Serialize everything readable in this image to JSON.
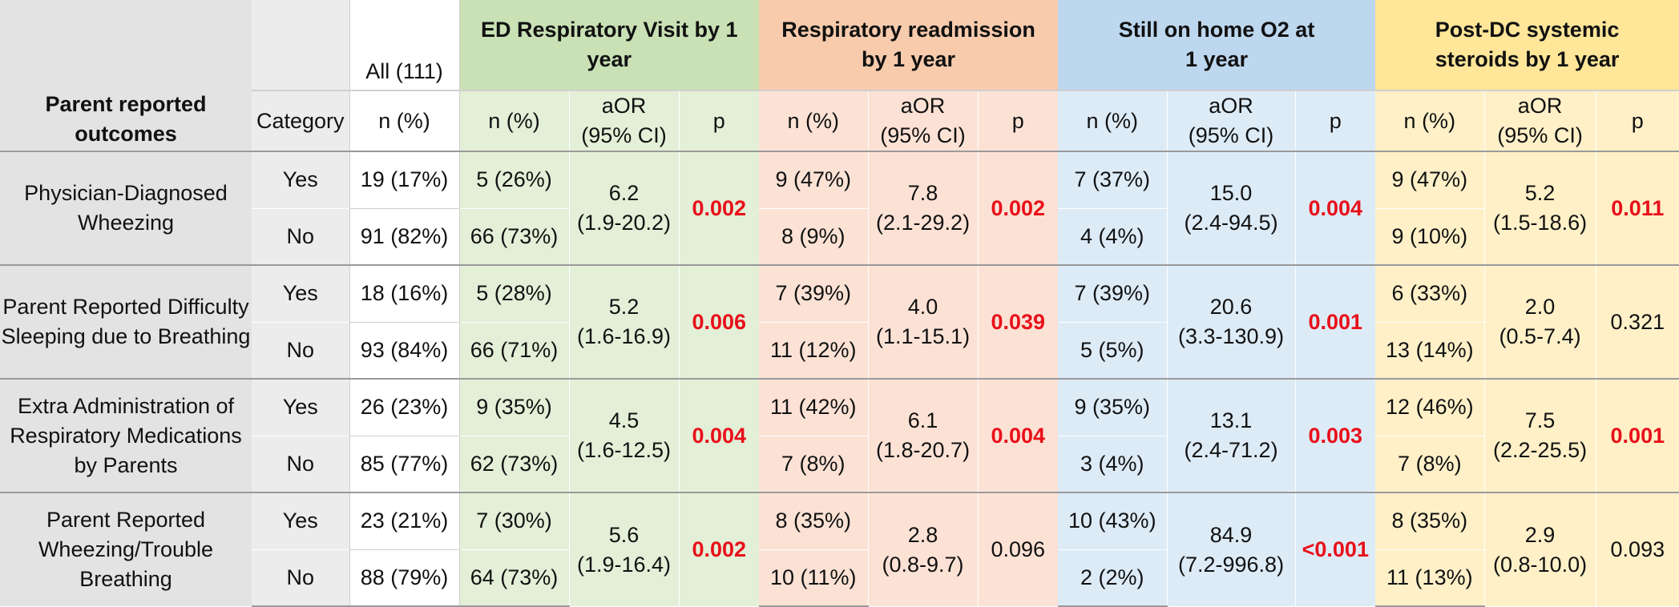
{
  "header": {
    "outcome_label": "Parent reported outcomes",
    "category_label": "Category",
    "all_label": "All (111)",
    "all_sub": "n (%)",
    "groups": [
      {
        "title": "ED Respiratory Visit by 1 year",
        "n_label": "n (%)",
        "aor_label": "aOR (95% CI)",
        "p_label": "p",
        "color": "#c9e1b5",
        "light": "#e3efd7"
      },
      {
        "title": "Respiratory readmission by 1 year",
        "n_label": "n (%)",
        "aor_label": "aOR (95% CI)",
        "p_label": "p",
        "color": "#f8cbad",
        "light": "#fce2d5"
      },
      {
        "title": "Still on home O2 at 1 year",
        "n_label": "n (%)",
        "aor_label": "aOR (95% CI)",
        "p_label": "p",
        "color": "#bdd7ee",
        "light": "#ddebf7"
      },
      {
        "title": "Post-DC systemic steroids by 1 year",
        "n_label": "n (%)",
        "aor_label": "aOR (95% CI)",
        "p_label": "p",
        "color": "#ffe699",
        "light": "#fff0c8"
      }
    ]
  },
  "significant_color": "#e8101a",
  "rows": [
    {
      "outcome": "Physician-Diagnosed Wheezing",
      "yes_label": "Yes",
      "no_label": "No",
      "all_yes": "19 (17%)",
      "all_no": "91 (82%)",
      "groups": [
        {
          "yes": "5 (26%)",
          "no": "66 (73%)",
          "aor": "6.2",
          "ci": "(1.9-20.2)",
          "p": "0.002",
          "sig": true
        },
        {
          "yes": "9 (47%)",
          "no": "8 (9%)",
          "aor": "7.8",
          "ci": "(2.1-29.2)",
          "p": "0.002",
          "sig": true
        },
        {
          "yes": "7 (37%)",
          "no": "4 (4%)",
          "aor": "15.0",
          "ci": "(2.4-94.5)",
          "p": "0.004",
          "sig": true
        },
        {
          "yes": "9 (47%)",
          "no": "9 (10%)",
          "aor": "5.2",
          "ci": "(1.5-18.6)",
          "p": "0.011",
          "sig": true
        }
      ]
    },
    {
      "outcome": "Parent Reported Difficulty Sleeping due to Breathing",
      "yes_label": "Yes",
      "no_label": "No",
      "all_yes": "18 (16%)",
      "all_no": "93 (84%)",
      "groups": [
        {
          "yes": "5 (28%)",
          "no": "66 (71%)",
          "aor": "5.2",
          "ci": "(1.6-16.9)",
          "p": "0.006",
          "sig": true
        },
        {
          "yes": "7 (39%)",
          "no": "11 (12%)",
          "aor": "4.0",
          "ci": "(1.1-15.1)",
          "p": "0.039",
          "sig": true
        },
        {
          "yes": "7 (39%)",
          "no": "5 (5%)",
          "aor": "20.6",
          "ci": "(3.3-130.9)",
          "p": "0.001",
          "sig": true
        },
        {
          "yes": "6 (33%)",
          "no": "13 (14%)",
          "aor": "2.0",
          "ci": "(0.5-7.4)",
          "p": "0.321",
          "sig": false
        }
      ]
    },
    {
      "outcome": "Extra Administration of Respiratory Medications by Parents",
      "yes_label": "Yes",
      "no_label": "No",
      "all_yes": "26 (23%)",
      "all_no": "85 (77%)",
      "groups": [
        {
          "yes": "9 (35%)",
          "no": "62 (73%)",
          "aor": "4.5",
          "ci": "(1.6-12.5)",
          "p": "0.004",
          "sig": true
        },
        {
          "yes": "11 (42%)",
          "no": "7 (8%)",
          "aor": "6.1",
          "ci": "(1.8-20.7)",
          "p": "0.004",
          "sig": true
        },
        {
          "yes": "9 (35%)",
          "no": "3 (4%)",
          "aor": "13.1",
          "ci": "(2.4-71.2)",
          "p": "0.003",
          "sig": true
        },
        {
          "yes": "12 (46%)",
          "no": "7 (8%)",
          "aor": "7.5",
          "ci": "(2.2-25.5)",
          "p": "0.001",
          "sig": true
        }
      ]
    },
    {
      "outcome": "Parent Reported Wheezing/Trouble Breathing",
      "yes_label": "Yes",
      "no_label": "No",
      "all_yes": "23 (21%)",
      "all_no": "88 (79%)",
      "groups": [
        {
          "yes": "7 (30%)",
          "no": "64 (73%)",
          "aor": "5.6",
          "ci": "(1.9-16.4)",
          "p": "0.002",
          "sig": true
        },
        {
          "yes": "8 (35%)",
          "no": "10 (11%)",
          "aor": "2.8",
          "ci": "(0.8-9.7)",
          "p": "0.096",
          "sig": false
        },
        {
          "yes": "10 (43%)",
          "no": "2 (2%)",
          "aor": "84.9",
          "ci": "(7.2-996.8)",
          "p": "<0.001",
          "sig": true
        },
        {
          "yes": "8 (35%)",
          "no": "11 (13%)",
          "aor": "2.9",
          "ci": "(0.8-10.0)",
          "p": "0.093",
          "sig": false
        }
      ]
    }
  ]
}
